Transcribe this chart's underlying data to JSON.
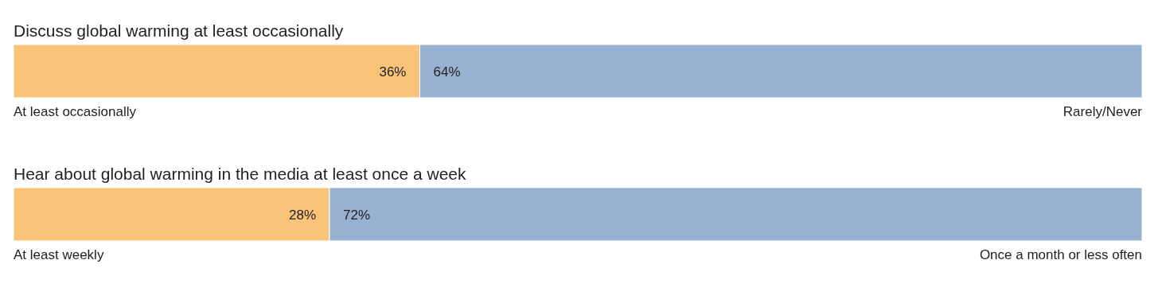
{
  "chart_data": [
    {
      "type": "bar",
      "orientation": "horizontal",
      "stacked": true,
      "title": "Discuss global warming at least occasionally",
      "categories": [
        null
      ],
      "series": [
        {
          "name": "At least occasionally",
          "color": "#f9c479",
          "values": [
            36
          ],
          "value_labels": [
            "36%"
          ]
        },
        {
          "name": "Rarely/Never",
          "color": "#98b1d1",
          "values": [
            64
          ],
          "value_labels": [
            "64%"
          ]
        }
      ]
    },
    {
      "type": "bar",
      "orientation": "horizontal",
      "stacked": true,
      "title": "Hear about global warming in the media at least once a week",
      "categories": [
        null
      ],
      "series": [
        {
          "name": "At least weekly",
          "color": "#f9c479",
          "values": [
            28
          ],
          "value_labels": [
            "28%"
          ]
        },
        {
          "name": "Once a month or less often",
          "color": "#98b1d1",
          "values": [
            72
          ],
          "value_labels": [
            "72%"
          ]
        }
      ]
    }
  ]
}
